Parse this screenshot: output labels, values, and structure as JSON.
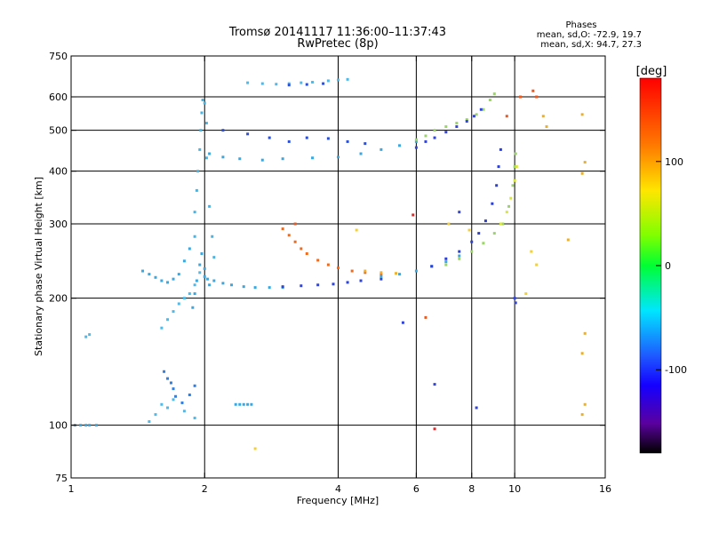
{
  "chart_data": {
    "type": "scatter",
    "title": "Tromsø 20141117 11:36:00–11:37:43",
    "subtitle": "RwPretec (8p)",
    "phases": {
      "heading": "Phases",
      "line_o": "mean, sd,O: -72.9, 19.7",
      "line_x": "mean, sd,X:  94.7, 27.3"
    },
    "xlabel": "Frequency [MHz]",
    "ylabel": "Stationary phase Virtual Height [km]",
    "x_scale": "log",
    "y_scale": "log",
    "xlim": [
      1,
      16
    ],
    "ylim": [
      75,
      750
    ],
    "x_ticks": [
      1,
      2,
      4,
      6,
      8,
      10,
      16
    ],
    "x_tick_labels": [
      "1",
      "2",
      "4",
      "6",
      "8",
      "10",
      "16"
    ],
    "y_ticks": [
      75,
      100,
      200,
      300,
      400,
      500,
      600,
      750
    ],
    "y_tick_labels": [
      "75",
      "100",
      "200",
      "300",
      "400",
      "500",
      "600",
      "750"
    ],
    "grid_x": [
      2,
      4,
      6,
      8,
      10
    ],
    "grid_y": [
      100,
      200,
      300,
      400,
      500,
      600
    ],
    "grid": true,
    "colorbar": {
      "label": "[deg]",
      "range": [
        -180,
        180
      ],
      "tick_values": [
        100,
        0,
        -100
      ],
      "tick_labels": [
        "100",
        "0",
        "-100"
      ],
      "placement": "right"
    },
    "series": [
      {
        "color": "#3aa8e0",
        "phase": -60,
        "points": [
          [
            1.02,
            100
          ],
          [
            1.05,
            100
          ],
          [
            1.08,
            100
          ],
          [
            1.1,
            100
          ],
          [
            1.14,
            100
          ]
        ]
      },
      {
        "color": "#4fb9e8",
        "phase": -50,
        "points": [
          [
            1.08,
            162
          ],
          [
            1.1,
            164
          ]
        ]
      },
      {
        "color": "#3aa8e0",
        "phase": -60,
        "points": [
          [
            1.45,
            232
          ],
          [
            1.5,
            228
          ],
          [
            1.55,
            224
          ],
          [
            1.6,
            220
          ],
          [
            1.65,
            218
          ],
          [
            1.7,
            222
          ],
          [
            1.75,
            228
          ],
          [
            1.8,
            245
          ],
          [
            1.85,
            262
          ]
        ]
      },
      {
        "color": "#4fb9e8",
        "phase": -55,
        "points": [
          [
            1.6,
            170
          ],
          [
            1.65,
            178
          ],
          [
            1.7,
            186
          ],
          [
            1.75,
            194
          ],
          [
            1.8,
            200
          ],
          [
            1.85,
            205
          ],
          [
            1.9,
            215
          ],
          [
            1.95,
            230
          ]
        ]
      },
      {
        "color": "#2f7ee0",
        "phase": -75,
        "points": [
          [
            1.62,
            134
          ],
          [
            1.65,
            129
          ],
          [
            1.68,
            126
          ],
          [
            1.7,
            122
          ],
          [
            1.72,
            117
          ],
          [
            1.78,
            113
          ],
          [
            1.85,
            118
          ],
          [
            1.9,
            124
          ]
        ]
      },
      {
        "color": "#4fb9e8",
        "phase": -55,
        "points": [
          [
            1.5,
            102
          ],
          [
            1.55,
            106
          ],
          [
            1.6,
            112
          ],
          [
            1.65,
            110
          ],
          [
            1.7,
            115
          ],
          [
            1.8,
            108
          ],
          [
            1.9,
            104
          ]
        ]
      },
      {
        "color": "#3aa8e0",
        "phase": -60,
        "points": [
          [
            2.35,
            112
          ],
          [
            2.4,
            112
          ],
          [
            2.45,
            112
          ],
          [
            2.5,
            112
          ],
          [
            2.55,
            112
          ]
        ]
      },
      {
        "color": "#45b5e5",
        "phase": -55,
        "points": [
          [
            1.9,
            280
          ],
          [
            1.9,
            320
          ],
          [
            1.92,
            360
          ],
          [
            1.93,
            400
          ],
          [
            1.95,
            450
          ],
          [
            1.96,
            500
          ],
          [
            1.97,
            550
          ],
          [
            1.98,
            590
          ],
          [
            2.0,
            580
          ],
          [
            2.02,
            520
          ],
          [
            2.02,
            430
          ],
          [
            2.05,
            330
          ],
          [
            2.08,
            280
          ],
          [
            2.1,
            250
          ]
        ]
      },
      {
        "color": "#3aa8e0",
        "phase": -60,
        "points": [
          [
            1.88,
            190
          ],
          [
            1.9,
            205
          ],
          [
            1.92,
            220
          ],
          [
            1.95,
            240
          ],
          [
            1.97,
            255
          ],
          [
            2.0,
            235
          ],
          [
            2.03,
            222
          ],
          [
            2.05,
            215
          ]
        ]
      },
      {
        "color": "#3aa8e0",
        "phase": -60,
        "points": [
          [
            2.05,
            440
          ],
          [
            2.2,
            432
          ],
          [
            2.4,
            428
          ],
          [
            2.7,
            425
          ],
          [
            3.0,
            428
          ],
          [
            3.5,
            430
          ],
          [
            4.0,
            432
          ],
          [
            4.5,
            440
          ],
          [
            5.0,
            450
          ],
          [
            5.5,
            460
          ],
          [
            6.0,
            470
          ]
        ]
      },
      {
        "color": "#2b4fd6",
        "phase": -90,
        "points": [
          [
            2.2,
            500
          ],
          [
            2.5,
            490
          ],
          [
            2.8,
            480
          ],
          [
            3.1,
            470
          ],
          [
            3.4,
            480
          ],
          [
            3.8,
            478
          ],
          [
            4.2,
            470
          ],
          [
            4.6,
            465
          ]
        ]
      },
      {
        "color": "#9bd46a",
        "phase": 40,
        "points": [
          [
            6.0,
            475
          ],
          [
            6.3,
            485
          ],
          [
            6.6,
            500
          ],
          [
            7.0,
            510
          ],
          [
            7.4,
            520
          ],
          [
            7.8,
            530
          ],
          [
            8.2,
            545
          ],
          [
            8.5,
            560
          ],
          [
            8.8,
            590
          ],
          [
            9.0,
            610
          ]
        ]
      },
      {
        "color": "#3344d8",
        "phase": -90,
        "points": [
          [
            6.0,
            455
          ],
          [
            6.3,
            470
          ],
          [
            6.6,
            480
          ],
          [
            7.0,
            495
          ],
          [
            7.4,
            510
          ],
          [
            7.8,
            525
          ],
          [
            8.1,
            540
          ],
          [
            8.4,
            560
          ]
        ]
      },
      {
        "color": "#4fb9e8",
        "phase": -55,
        "points": [
          [
            2.5,
            648
          ],
          [
            2.7,
            645
          ],
          [
            2.9,
            643
          ],
          [
            3.1,
            645
          ],
          [
            3.3,
            648
          ],
          [
            3.5,
            650
          ],
          [
            3.8,
            655
          ],
          [
            4.0,
            658
          ],
          [
            4.2,
            660
          ]
        ]
      },
      {
        "color": "#2b4fd6",
        "phase": -90,
        "points": [
          [
            3.1,
            640
          ],
          [
            3.4,
            642
          ],
          [
            3.7,
            645
          ]
        ]
      },
      {
        "color": "#3aa8e0",
        "phase": -60,
        "points": [
          [
            2.0,
            225
          ],
          [
            2.1,
            220
          ],
          [
            2.2,
            217
          ],
          [
            2.3,
            215
          ],
          [
            2.45,
            213
          ],
          [
            2.6,
            212
          ],
          [
            2.8,
            212
          ],
          [
            3.0,
            212
          ]
        ]
      },
      {
        "color": "#2f44d8",
        "phase": -95,
        "points": [
          [
            3.0,
            213
          ],
          [
            3.3,
            214
          ],
          [
            3.6,
            215
          ],
          [
            3.9,
            216
          ],
          [
            4.2,
            218
          ],
          [
            4.5,
            220
          ],
          [
            5.0,
            222
          ]
        ]
      },
      {
        "color": "#3aa8e0",
        "phase": -55,
        "points": [
          [
            5.0,
            225
          ],
          [
            5.5,
            228
          ],
          [
            6.0,
            232
          ],
          [
            6.5,
            238
          ],
          [
            7.0,
            244
          ],
          [
            7.5,
            252
          ]
        ]
      },
      {
        "color": "#2b3fd4",
        "phase": -95,
        "points": [
          [
            6.5,
            238
          ],
          [
            7.0,
            248
          ],
          [
            7.5,
            258
          ],
          [
            8.0,
            272
          ],
          [
            8.3,
            285
          ],
          [
            8.6,
            305
          ],
          [
            8.9,
            335
          ],
          [
            9.1,
            370
          ],
          [
            9.2,
            410
          ],
          [
            9.3,
            450
          ]
        ]
      },
      {
        "color": "#9bd46a",
        "phase": 50,
        "points": [
          [
            7.0,
            240
          ],
          [
            7.5,
            248
          ],
          [
            8.0,
            258
          ],
          [
            8.5,
            270
          ],
          [
            9.0,
            285
          ],
          [
            9.4,
            300
          ],
          [
            9.7,
            330
          ],
          [
            9.9,
            370
          ],
          [
            10.0,
            410
          ],
          [
            10.05,
            440
          ]
        ]
      },
      {
        "color": "#d6e63a",
        "phase": 90,
        "points": [
          [
            9.3,
            300
          ],
          [
            9.6,
            320
          ],
          [
            9.8,
            345
          ],
          [
            10.0,
            380
          ],
          [
            10.1,
            410
          ]
        ]
      },
      {
        "color": "#f06a1a",
        "phase": 150,
        "points": [
          [
            3.0,
            292
          ],
          [
            3.1,
            282
          ],
          [
            3.2,
            272
          ],
          [
            3.3,
            262
          ],
          [
            3.4,
            255
          ],
          [
            3.6,
            246
          ],
          [
            3.8,
            240
          ],
          [
            4.0,
            236
          ],
          [
            4.3,
            232
          ],
          [
            4.6,
            230
          ],
          [
            5.0,
            228
          ]
        ]
      },
      {
        "color": "#f0b02a",
        "phase": 120,
        "points": [
          [
            4.6,
            232
          ],
          [
            5.0,
            230
          ],
          [
            5.4,
            229
          ]
        ]
      },
      {
        "color": "#3344d8",
        "phase": -90,
        "points": [
          [
            6.6,
            125
          ],
          [
            8.2,
            110
          ],
          [
            5.6,
            175
          ],
          [
            7.5,
            320
          ],
          [
            10.0,
            200
          ],
          [
            10.05,
            195
          ]
        ]
      },
      {
        "color": "#e02828",
        "phase": 170,
        "points": [
          [
            6.6,
            98
          ],
          [
            5.9,
            315
          ]
        ]
      },
      {
        "color": "#e8b030",
        "phase": 110,
        "points": [
          [
            11.6,
            540
          ],
          [
            11.8,
            510
          ],
          [
            14.2,
            545
          ],
          [
            14.4,
            420
          ],
          [
            14.2,
            395
          ],
          [
            13.2,
            275
          ],
          [
            14.4,
            165
          ],
          [
            14.2,
            148
          ],
          [
            14.4,
            112
          ],
          [
            14.2,
            106
          ]
        ]
      },
      {
        "color": "#f0d040",
        "phase": 100,
        "points": [
          [
            10.9,
            258
          ],
          [
            11.2,
            240
          ],
          [
            10.6,
            205
          ],
          [
            2.6,
            88
          ],
          [
            4.4,
            290
          ],
          [
            7.1,
            300
          ],
          [
            7.9,
            290
          ]
        ]
      },
      {
        "color": "#e85a20",
        "phase": 160,
        "points": [
          [
            10.3,
            600
          ],
          [
            11.0,
            620
          ],
          [
            11.2,
            600
          ],
          [
            9.6,
            540
          ],
          [
            3.2,
            300
          ],
          [
            6.3,
            180
          ]
        ]
      }
    ]
  }
}
